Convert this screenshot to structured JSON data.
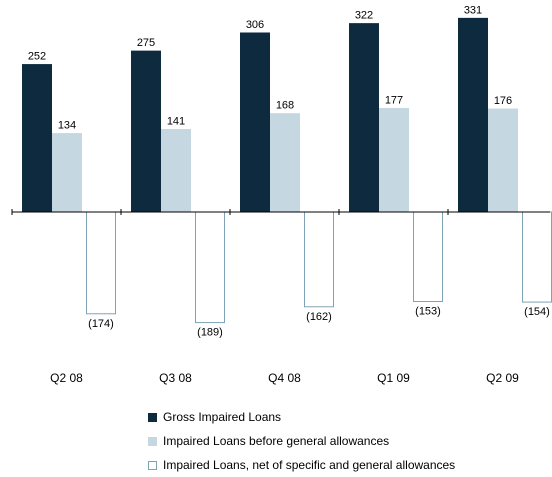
{
  "chart_data": {
    "type": "bar",
    "categories": [
      "Q2 08",
      "Q3 08",
      "Q4 08",
      "Q1 09",
      "Q2 09"
    ],
    "series": [
      {
        "name": "Gross Impaired Loans",
        "values": [
          252,
          275,
          306,
          322,
          331
        ],
        "labels": [
          "252",
          "275",
          "306",
          "322",
          "331"
        ],
        "fill": "#0d2a3f",
        "stroke": "#0d2a3f"
      },
      {
        "name": "Impaired Loans before general allowances",
        "values": [
          134,
          141,
          168,
          177,
          176
        ],
        "labels": [
          "134",
          "141",
          "168",
          "177",
          "176"
        ],
        "fill": "#c5d7e0",
        "stroke": "#c5d7e0"
      },
      {
        "name": "Impaired Loans, net of specific and general allowances",
        "values": [
          -174,
          -189,
          -162,
          -153,
          -154
        ],
        "labels": [
          "(174)",
          "(189)",
          "(162)",
          "(153)",
          "(154)"
        ],
        "fill": "#ffffff",
        "stroke": "#7fa3b6"
      }
    ],
    "ylim": [
      -190,
      340
    ],
    "grid": false,
    "legend_position": "bottom",
    "title": "",
    "xlabel": "",
    "ylabel": ""
  }
}
